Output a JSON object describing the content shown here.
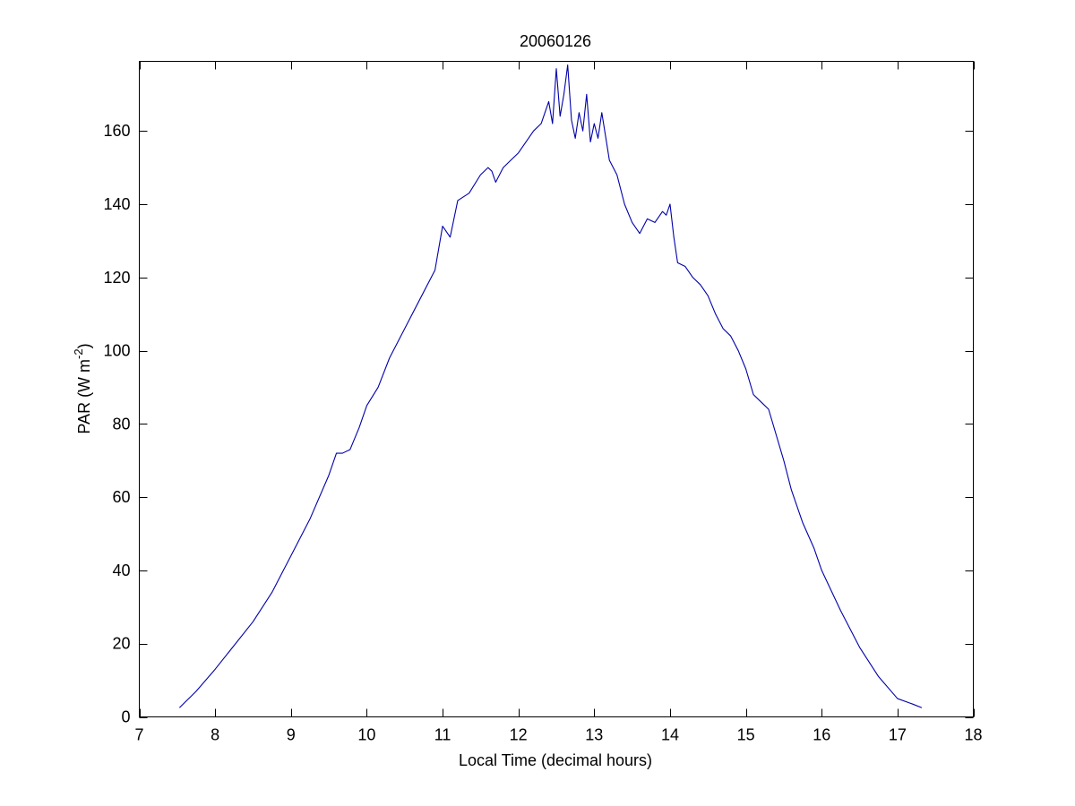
{
  "chart_data": {
    "type": "line",
    "title": "20060126",
    "xlabel": "Local Time (decimal hours)",
    "ylabel": {
      "main": "PAR (W m",
      "superscript": "-2",
      "suffix": ")"
    },
    "xlim": [
      7,
      18
    ],
    "ylim": [
      0,
      179
    ],
    "xticks": [
      7,
      8,
      9,
      10,
      11,
      12,
      13,
      14,
      15,
      16,
      17,
      18
    ],
    "yticks": [
      0,
      20,
      40,
      60,
      80,
      100,
      120,
      140,
      160
    ],
    "grid": false,
    "line_color": "#0000aa",
    "series": [
      {
        "x": [
          7.53,
          7.75,
          8.0,
          8.25,
          8.5,
          8.75,
          9.0,
          9.25,
          9.5,
          9.6,
          9.68,
          9.78,
          9.9,
          10.0,
          10.15,
          10.3,
          10.5,
          10.7,
          10.9,
          11.0,
          11.1,
          11.2,
          11.35,
          11.5,
          11.6,
          11.65,
          11.7,
          11.8,
          11.9,
          12.0,
          12.1,
          12.2,
          12.3,
          12.4,
          12.45,
          12.5,
          12.55,
          12.6,
          12.65,
          12.7,
          12.75,
          12.8,
          12.85,
          12.9,
          12.95,
          13.0,
          13.05,
          13.1,
          13.2,
          13.3,
          13.4,
          13.5,
          13.6,
          13.7,
          13.8,
          13.9,
          13.95,
          14.0,
          14.05,
          14.1,
          14.2,
          14.3,
          14.4,
          14.5,
          14.6,
          14.7,
          14.8,
          14.9,
          15.0,
          15.1,
          15.2,
          15.3,
          15.4,
          15.5,
          15.6,
          15.75,
          15.9,
          16.0,
          16.25,
          16.5,
          16.75,
          17.0,
          17.2,
          17.32
        ],
        "y": [
          2.5,
          7,
          13,
          19.5,
          26,
          34,
          44,
          54,
          66,
          72,
          72,
          73,
          79,
          85,
          90,
          98,
          106,
          114,
          122,
          134,
          131,
          141,
          143,
          148,
          150,
          149,
          146,
          150,
          152,
          154,
          157,
          160,
          162,
          168,
          162,
          177,
          164,
          170,
          178,
          163,
          158,
          165,
          160,
          170,
          157,
          162,
          158,
          165,
          152,
          148,
          140,
          135,
          132,
          136,
          135,
          138,
          137,
          140,
          131,
          124,
          123,
          120,
          118,
          115,
          110,
          106,
          104,
          100,
          95,
          88,
          86,
          84,
          77,
          70,
          62,
          53,
          46,
          40,
          29,
          19,
          11,
          5,
          3.5,
          2.5
        ]
      }
    ]
  }
}
